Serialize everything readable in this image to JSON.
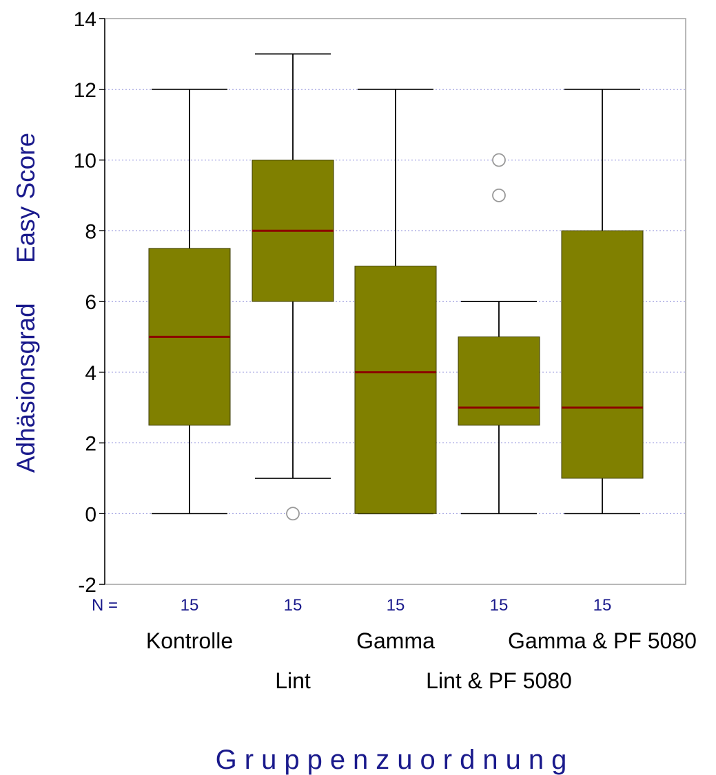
{
  "chart_data": {
    "type": "boxplot",
    "title": "",
    "xlabel": "Gruppenzuordnung",
    "ylabel_parts": [
      "Adhäsionsgrad",
      "Easy Score"
    ],
    "ylim": [
      -2,
      14
    ],
    "yticks": [
      -2,
      0,
      2,
      4,
      6,
      8,
      10,
      12,
      14
    ],
    "grid": "horizontal dotted",
    "n_prefix": "N =",
    "categories": [
      "Kontrolle",
      "Lint",
      "Gamma",
      "Lint & PF 5080",
      "Gamma & PF 5080"
    ],
    "n": [
      "15",
      "15",
      "15",
      "15",
      "15"
    ],
    "series": [
      {
        "category": "Kontrolle",
        "whisker_low": 0,
        "q1": 2.5,
        "median": 5,
        "q3": 7.5,
        "whisker_high": 12,
        "outliers": []
      },
      {
        "category": "Lint",
        "whisker_low": 1,
        "q1": 6,
        "median": 8,
        "q3": 10,
        "whisker_high": 13,
        "outliers": [
          0
        ]
      },
      {
        "category": "Gamma",
        "whisker_low": 0,
        "q1": 0,
        "median": 4,
        "q3": 7,
        "whisker_high": 12,
        "outliers": []
      },
      {
        "category": "Lint & PF 5080",
        "whisker_low": 0,
        "q1": 2.5,
        "median": 3,
        "q3": 5,
        "whisker_high": 6,
        "outliers": [
          9,
          10
        ]
      },
      {
        "category": "Gamma & PF 5080",
        "whisker_low": 0,
        "q1": 1,
        "median": 3,
        "q3": 8,
        "whisker_high": 12,
        "outliers": []
      }
    ],
    "colors": {
      "box_fill": "#808000",
      "median": "#8b0000",
      "whisker": "#000000",
      "grid": "#7b7bd6",
      "frame": "#a0a0a0",
      "n_text": "#1a1a8c",
      "label_text": "#1a1a8c",
      "outlier": "#999999"
    }
  }
}
